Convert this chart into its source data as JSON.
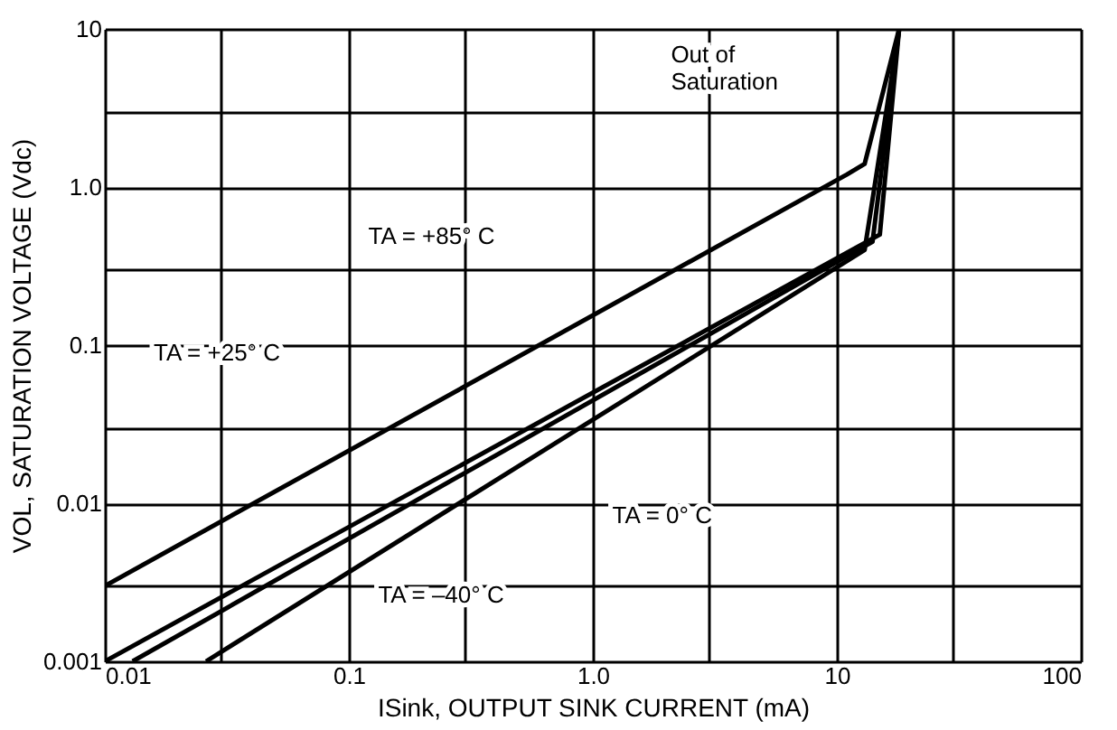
{
  "chart_data": {
    "type": "line",
    "xlabel": "ISink, OUTPUT SINK CURRENT (mA)",
    "ylabel": "VOL, SATURATION VOLTAGE (Vdc)",
    "log": "xy",
    "grid": true,
    "xlim": [
      0.01,
      100
    ],
    "ylim": [
      0.001,
      10
    ],
    "xticks": [
      0.01,
      {
        "value": 0.03,
        "label": null
      },
      0.1,
      {
        "value": 0.3,
        "label": null
      },
      {
        "value": 1,
        "label": "1.0"
      },
      {
        "value": 3,
        "label": null
      },
      10,
      {
        "value": 30,
        "label": null
      },
      100
    ],
    "yticks": [
      0.001,
      {
        "value": 0.003,
        "label": null
      },
      0.01,
      {
        "value": 0.03,
        "label": null
      },
      0.1,
      {
        "value": 0.3,
        "label": null
      },
      {
        "value": 1,
        "label": "1.0"
      },
      {
        "value": 3,
        "label": null
      },
      10
    ],
    "series": [
      {
        "color": "#000000",
        "x": [
          0.01,
          11,
          13,
          18
        ],
        "values": [
          0.003,
          1.2,
          1.4,
          10
        ]
      },
      {
        "color": "#000000",
        "x": [
          0.01,
          15,
          18
        ],
        "values": [
          0.001,
          0.5,
          10
        ]
      },
      {
        "color": "#000000",
        "x": [
          0.013,
          14,
          18
        ],
        "values": [
          0.001,
          0.45,
          10
        ]
      },
      {
        "color": "#000000",
        "x": [
          0.026,
          13,
          18
        ],
        "values": [
          0.001,
          0.4,
          10
        ]
      }
    ],
    "annotations": [
      "TA =  +85° C",
      "TA =  +25° C",
      "TA =  0° C",
      "TA = –40° C",
      "Out of\nSaturation"
    ]
  }
}
